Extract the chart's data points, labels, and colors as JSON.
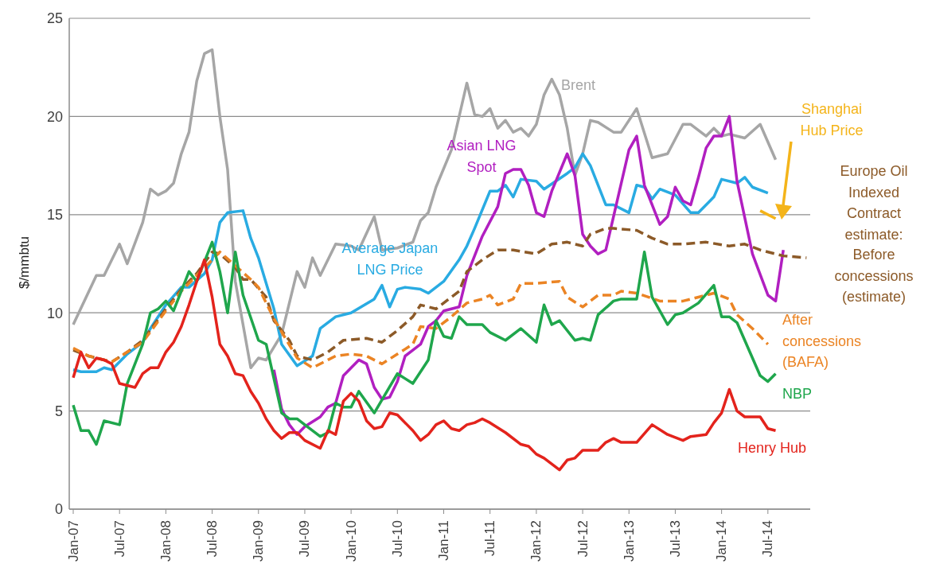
{
  "chart_data": {
    "type": "line",
    "ylabel": "$/mmbtu",
    "xlim": [
      "2006-12-16",
      "2014-12-16"
    ],
    "ylim": [
      0,
      25
    ],
    "yticks": [
      0,
      5,
      10,
      15,
      20,
      25
    ],
    "xticks": [
      {
        "value": "2007-01",
        "label": "Jan-07"
      },
      {
        "value": "2007-07",
        "label": "Jul-07"
      },
      {
        "value": "2008-01",
        "label": "Jan-08"
      },
      {
        "value": "2008-07",
        "label": "Jul-08"
      },
      {
        "value": "2009-01",
        "label": "Jan-09"
      },
      {
        "value": "2009-07",
        "label": "Jul-09"
      },
      {
        "value": "2010-01",
        "label": "Jan-10"
      },
      {
        "value": "2010-07",
        "label": "Jul-10"
      },
      {
        "value": "2011-01",
        "label": "Jan-11"
      },
      {
        "value": "2011-07",
        "label": "Jul-11"
      },
      {
        "value": "2012-01",
        "label": "Jan-12"
      },
      {
        "value": "2012-07",
        "label": "Jul-12"
      },
      {
        "value": "2013-01",
        "label": "Jan-13"
      },
      {
        "value": "2013-07",
        "label": "Jul-13"
      },
      {
        "value": "2014-01",
        "label": "Jan-14"
      },
      {
        "value": "2014-07",
        "label": "Jul-14"
      }
    ],
    "grid": "y",
    "legend": false,
    "marker": "none",
    "line_style": "solid",
    "annotations": [
      "Europe Oil Indexed Contract estimate:"
    ],
    "series": [
      {
        "name": "Brent",
        "color": "#a6a6a6",
        "x": [
          "2007-01",
          "2007-04",
          "2007-05",
          "2007-07",
          "2007-08",
          "2007-10",
          "2007-11",
          "2007-12",
          "2008-01",
          "2008-02",
          "2008-03",
          "2008-04",
          "2008-05",
          "2008-06",
          "2008-07",
          "2008-08",
          "2008-09",
          "2008-10",
          "2008-12",
          "2009-01",
          "2009-02",
          "2009-04",
          "2009-06",
          "2009-07",
          "2009-08",
          "2009-09",
          "2009-11",
          "2010-01",
          "2010-02",
          "2010-04",
          "2010-05",
          "2010-07",
          "2010-09",
          "2010-10",
          "2010-11",
          "2010-12",
          "2011-02",
          "2011-03",
          "2011-04",
          "2011-05",
          "2011-06",
          "2011-07",
          "2011-08",
          "2011-09",
          "2011-10",
          "2011-11",
          "2011-12",
          "2012-01",
          "2012-02",
          "2012-03",
          "2012-04",
          "2012-05",
          "2012-06",
          "2012-07",
          "2012-08",
          "2012-09",
          "2012-11",
          "2012-12",
          "2013-02",
          "2013-04",
          "2013-06",
          "2013-08",
          "2013-09",
          "2013-11",
          "2013-12",
          "2014-01",
          "2014-02",
          "2014-04",
          "2014-06",
          "2014-08"
        ],
        "values": [
          9.4,
          11.9,
          11.9,
          13.5,
          12.5,
          14.6,
          16.3,
          16.0,
          16.2,
          16.6,
          18.1,
          19.2,
          21.8,
          23.2,
          23.4,
          20.0,
          17.3,
          11.6,
          7.2,
          7.7,
          7.6,
          8.9,
          12.1,
          11.3,
          12.8,
          11.9,
          13.5,
          13.4,
          13.2,
          14.9,
          13.2,
          13.3,
          13.6,
          14.7,
          15.1,
          16.4,
          18.3,
          20.0,
          21.7,
          20.1,
          20.0,
          20.4,
          19.4,
          19.8,
          19.2,
          19.4,
          19.0,
          19.6,
          21.1,
          21.9,
          21.1,
          19.4,
          17.0,
          18.1,
          19.8,
          19.7,
          19.2,
          19.2,
          20.4,
          17.9,
          18.1,
          19.6,
          19.6,
          19.0,
          19.4,
          19.0,
          19.1,
          18.9,
          19.6,
          17.8
        ]
      },
      {
        "name": "Average Japan LNG Price",
        "color": "#29abe2",
        "x": [
          "2007-01",
          "2007-02",
          "2007-04",
          "2007-05",
          "2007-06",
          "2007-08",
          "2007-10",
          "2007-11",
          "2008-01",
          "2008-03",
          "2008-04",
          "2008-06",
          "2008-07",
          "2008-08",
          "2008-09",
          "2008-11",
          "2008-12",
          "2009-01",
          "2009-03",
          "2009-04",
          "2009-06",
          "2009-08",
          "2009-09",
          "2009-11",
          "2010-01",
          "2010-04",
          "2010-05",
          "2010-06",
          "2010-07",
          "2010-08",
          "2010-10",
          "2010-11",
          "2011-01",
          "2011-03",
          "2011-04",
          "2011-05",
          "2011-07",
          "2011-08",
          "2011-09",
          "2011-10",
          "2011-11",
          "2012-01",
          "2012-02",
          "2012-05",
          "2012-06",
          "2012-07",
          "2012-08",
          "2012-10",
          "2012-11",
          "2013-01",
          "2013-02",
          "2013-03",
          "2013-04",
          "2013-05",
          "2013-07",
          "2013-09",
          "2013-10",
          "2013-12",
          "2014-01",
          "2014-03",
          "2014-04",
          "2014-05",
          "2014-07"
        ],
        "values": [
          7.1,
          7.0,
          7.0,
          7.2,
          7.1,
          7.9,
          8.5,
          9.2,
          10.4,
          11.3,
          11.3,
          12.0,
          12.7,
          14.6,
          15.1,
          15.2,
          13.8,
          12.8,
          10.2,
          8.4,
          7.3,
          7.8,
          9.2,
          9.8,
          10.0,
          10.7,
          11.4,
          10.3,
          11.2,
          11.3,
          11.2,
          11.0,
          11.6,
          12.7,
          13.4,
          14.3,
          16.2,
          16.2,
          16.5,
          15.9,
          16.8,
          16.7,
          16.3,
          17.1,
          17.4,
          18.1,
          17.5,
          15.5,
          15.5,
          15.1,
          16.5,
          16.4,
          15.8,
          16.3,
          16.0,
          15.1,
          15.1,
          15.9,
          16.8,
          16.6,
          16.9,
          16.4,
          16.1
        ]
      },
      {
        "name": "Asian LNG Spot",
        "color": "#b11fc0",
        "x": [
          "2009-03",
          "2009-04",
          "2009-05",
          "2009-06",
          "2009-07",
          "2009-09",
          "2009-10",
          "2009-11",
          "2009-12",
          "2010-02",
          "2010-03",
          "2010-04",
          "2010-05",
          "2010-06",
          "2010-07",
          "2010-08",
          "2010-09",
          "2010-10",
          "2010-11",
          "2010-12",
          "2011-01",
          "2011-03",
          "2011-04",
          "2011-06",
          "2011-08",
          "2011-09",
          "2011-10",
          "2011-11",
          "2011-12",
          "2012-01",
          "2012-02",
          "2012-03",
          "2012-05",
          "2012-06",
          "2012-07",
          "2012-08",
          "2012-09",
          "2012-10",
          "2012-11",
          "2013-01",
          "2013-02",
          "2013-03",
          "2013-05",
          "2013-06",
          "2013-07",
          "2013-08",
          "2013-09",
          "2013-10",
          "2013-11",
          "2013-12",
          "2014-01",
          "2014-02",
          "2014-03",
          "2014-05",
          "2014-07",
          "2014-08",
          "2014-09"
        ],
        "values": [
          7.1,
          5.1,
          4.3,
          3.8,
          4.2,
          4.7,
          5.2,
          5.4,
          6.8,
          7.6,
          7.4,
          6.2,
          5.6,
          5.7,
          6.5,
          7.8,
          8.1,
          8.4,
          9.3,
          9.6,
          10.1,
          10.3,
          11.9,
          13.9,
          15.4,
          17.1,
          17.3,
          17.3,
          16.5,
          15.1,
          14.9,
          16.2,
          18.1,
          17.0,
          14.0,
          13.4,
          13.0,
          13.2,
          14.9,
          18.3,
          19.0,
          16.5,
          14.5,
          14.9,
          16.4,
          15.7,
          15.5,
          16.9,
          18.4,
          19.0,
          19.0,
          20.0,
          16.7,
          13.0,
          10.9,
          10.6,
          13.2
        ]
      },
      {
        "name": "Before concessions (estimate)",
        "color": "#8c5a28",
        "line_style": "dashed",
        "x": [
          "2007-01",
          "2007-03",
          "2007-06",
          "2007-08",
          "2007-10",
          "2008-01",
          "2008-03",
          "2008-05",
          "2008-07",
          "2008-08",
          "2008-10",
          "2008-11",
          "2008-12",
          "2009-02",
          "2009-03",
          "2009-05",
          "2009-06",
          "2009-08",
          "2009-10",
          "2009-12",
          "2010-03",
          "2010-05",
          "2010-07",
          "2010-09",
          "2010-10",
          "2010-12",
          "2011-03",
          "2011-04",
          "2011-06",
          "2011-08",
          "2011-10",
          "2012-01",
          "2012-03",
          "2012-05",
          "2012-07",
          "2012-08",
          "2012-10",
          "2012-11",
          "2013-02",
          "2013-04",
          "2013-06",
          "2013-08",
          "2013-11",
          "2014-02",
          "2014-04",
          "2014-06",
          "2014-09",
          "2014-12"
        ],
        "values": [
          8.1,
          7.8,
          7.5,
          8.0,
          8.6,
          10.2,
          11.2,
          12.0,
          13.1,
          13.0,
          12.3,
          11.7,
          11.7,
          10.8,
          9.6,
          8.6,
          7.8,
          7.6,
          8.0,
          8.6,
          8.7,
          8.5,
          9.1,
          9.8,
          10.4,
          10.2,
          11.1,
          12.1,
          12.7,
          13.2,
          13.2,
          13.0,
          13.5,
          13.6,
          13.4,
          14.0,
          14.3,
          14.3,
          14.2,
          13.8,
          13.5,
          13.5,
          13.6,
          13.4,
          13.5,
          13.2,
          12.9,
          12.8
        ]
      },
      {
        "name": "After concessions (BAFA)",
        "color": "#eb8424",
        "line_style": "dashed",
        "x": [
          "2007-01",
          "2007-03",
          "2007-06",
          "2007-08",
          "2007-10",
          "2008-01",
          "2008-03",
          "2008-05",
          "2008-08",
          "2008-10",
          "2008-12",
          "2009-01",
          "2009-03",
          "2009-06",
          "2009-08",
          "2009-10",
          "2009-11",
          "2010-01",
          "2010-03",
          "2010-05",
          "2010-07",
          "2010-09",
          "2010-10",
          "2010-12",
          "2011-02",
          "2011-04",
          "2011-06",
          "2011-07",
          "2011-08",
          "2011-10",
          "2011-11",
          "2012-01",
          "2012-04",
          "2012-05",
          "2012-07",
          "2012-09",
          "2012-11",
          "2012-12",
          "2013-02",
          "2013-05",
          "2013-08",
          "2013-10",
          "2013-12",
          "2014-02",
          "2014-03",
          "2014-05",
          "2014-07"
        ],
        "values": [
          8.2,
          7.8,
          7.5,
          8.0,
          8.5,
          10.1,
          11.1,
          11.9,
          13.1,
          12.4,
          11.7,
          11.3,
          9.7,
          7.7,
          7.2,
          7.6,
          7.8,
          7.9,
          7.8,
          7.4,
          7.9,
          8.4,
          9.3,
          9.2,
          9.8,
          10.5,
          10.7,
          10.9,
          10.4,
          10.7,
          11.5,
          11.5,
          11.6,
          10.8,
          10.3,
          10.9,
          10.9,
          11.1,
          11.0,
          10.6,
          10.6,
          10.8,
          11.0,
          10.7,
          9.9,
          9.2,
          8.4
        ]
      },
      {
        "name": "NBP",
        "color": "#1fa64c",
        "x": [
          "2007-01",
          "2007-02",
          "2007-03",
          "2007-04",
          "2007-05",
          "2007-07",
          "2007-08",
          "2007-10",
          "2007-11",
          "2007-12",
          "2008-01",
          "2008-02",
          "2008-04",
          "2008-05",
          "2008-07",
          "2008-08",
          "2008-09",
          "2008-10",
          "2008-11",
          "2009-01",
          "2009-02",
          "2009-04",
          "2009-05",
          "2009-06",
          "2009-07",
          "2009-09",
          "2009-10",
          "2009-11",
          "2009-12",
          "2010-01",
          "2010-02",
          "2010-04",
          "2010-07",
          "2010-09",
          "2010-11",
          "2010-12",
          "2011-01",
          "2011-02",
          "2011-03",
          "2011-04",
          "2011-06",
          "2011-07",
          "2011-09",
          "2011-11",
          "2012-01",
          "2012-02",
          "2012-03",
          "2012-04",
          "2012-06",
          "2012-07",
          "2012-08",
          "2012-09",
          "2012-11",
          "2012-12",
          "2013-02",
          "2013-03",
          "2013-04",
          "2013-06",
          "2013-07",
          "2013-08",
          "2013-10",
          "2013-12",
          "2014-01",
          "2014-02",
          "2014-03",
          "2014-04",
          "2014-05",
          "2014-06",
          "2014-07",
          "2014-08"
        ],
        "values": [
          5.3,
          4.0,
          4.0,
          3.3,
          4.5,
          4.3,
          6.4,
          8.4,
          10.0,
          10.2,
          10.6,
          10.1,
          12.1,
          11.6,
          13.6,
          12.1,
          10.0,
          13.1,
          10.9,
          8.6,
          8.4,
          4.9,
          4.6,
          4.6,
          4.3,
          3.7,
          3.9,
          5.4,
          5.2,
          5.2,
          6.0,
          4.9,
          6.9,
          6.4,
          7.6,
          9.6,
          8.8,
          8.7,
          9.8,
          9.4,
          9.4,
          9.0,
          8.6,
          9.2,
          8.5,
          10.4,
          9.4,
          9.6,
          8.6,
          8.7,
          8.6,
          9.9,
          10.6,
          10.7,
          10.7,
          13.1,
          10.8,
          9.4,
          9.9,
          10.0,
          10.5,
          11.4,
          9.8,
          9.8,
          9.5,
          8.6,
          7.7,
          6.8,
          6.5,
          6.9
        ]
      },
      {
        "name": "Henry Hub",
        "color": "#e3231c",
        "x": [
          "2007-01",
          "2007-02",
          "2007-03",
          "2007-04",
          "2007-05",
          "2007-06",
          "2007-07",
          "2007-08",
          "2007-09",
          "2007-10",
          "2007-11",
          "2007-12",
          "2008-01",
          "2008-02",
          "2008-03",
          "2008-04",
          "2008-05",
          "2008-06",
          "2008-07",
          "2008-08",
          "2008-09",
          "2008-10",
          "2008-11",
          "2008-12",
          "2009-01",
          "2009-02",
          "2009-03",
          "2009-04",
          "2009-05",
          "2009-06",
          "2009-07",
          "2009-09",
          "2009-10",
          "2009-11",
          "2009-12",
          "2010-01",
          "2010-02",
          "2010-03",
          "2010-04",
          "2010-05",
          "2010-06",
          "2010-07",
          "2010-09",
          "2010-10",
          "2010-11",
          "2010-12",
          "2011-01",
          "2011-02",
          "2011-03",
          "2011-04",
          "2011-05",
          "2011-06",
          "2011-07",
          "2011-09",
          "2011-11",
          "2011-12",
          "2012-01",
          "2012-02",
          "2012-04",
          "2012-05",
          "2012-06",
          "2012-07",
          "2012-08",
          "2012-09",
          "2012-10",
          "2012-11",
          "2012-12",
          "2013-02",
          "2013-04",
          "2013-06",
          "2013-08",
          "2013-09",
          "2013-11",
          "2013-12",
          "2014-01",
          "2014-02",
          "2014-03",
          "2014-04",
          "2014-06",
          "2014-07",
          "2014-08"
        ],
        "values": [
          6.7,
          8.0,
          7.2,
          7.7,
          7.6,
          7.4,
          6.4,
          6.3,
          6.2,
          6.9,
          7.2,
          7.2,
          8.0,
          8.5,
          9.3,
          10.4,
          11.6,
          12.7,
          10.8,
          8.4,
          7.8,
          6.9,
          6.8,
          6.0,
          5.4,
          4.6,
          4.0,
          3.6,
          3.9,
          3.9,
          3.5,
          3.1,
          4.0,
          3.8,
          5.5,
          5.9,
          5.5,
          4.5,
          4.1,
          4.2,
          4.9,
          4.8,
          4.0,
          3.5,
          3.8,
          4.3,
          4.5,
          4.1,
          4.0,
          4.3,
          4.4,
          4.6,
          4.4,
          3.9,
          3.3,
          3.2,
          2.8,
          2.6,
          2.0,
          2.5,
          2.6,
          3.0,
          3.0,
          3.0,
          3.4,
          3.6,
          3.4,
          3.4,
          4.3,
          3.8,
          3.5,
          3.7,
          3.8,
          4.4,
          4.9,
          6.1,
          5.0,
          4.7,
          4.7,
          4.1,
          4.0
        ]
      },
      {
        "name": "Shanghai Hub Price",
        "color": "#f4b41a",
        "x": [
          "2014-06",
          "2014-08"
        ],
        "values": [
          15.2,
          14.8
        ]
      }
    ]
  }
}
